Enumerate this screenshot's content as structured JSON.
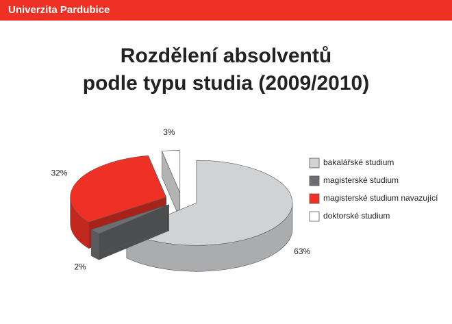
{
  "header": "Univerzita Pardubice",
  "chart_data": {
    "type": "pie3d",
    "title": "Rozdělení absolventů\npodle typu studia (2009/2010)",
    "categories": [
      "bakalářské studium",
      "magisterské studium",
      "magisterské studium navazující",
      "doktorské studium"
    ],
    "values": [
      63,
      2,
      32,
      3
    ],
    "value_labels": [
      "63%",
      "2%",
      "32%",
      "3%"
    ],
    "colors": [
      "#d1d2d4",
      "#6d6e71",
      "#ee3124",
      "#ffffff"
    ],
    "legend": "right"
  }
}
